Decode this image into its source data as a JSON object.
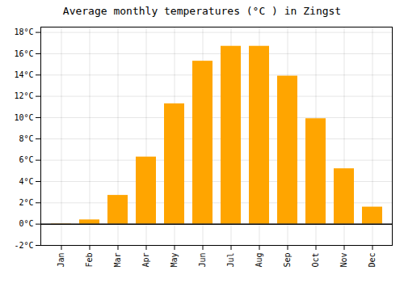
{
  "chart_data": {
    "type": "bar",
    "title": "Average monthly temperatures (°C ) in Zingst",
    "categories": [
      "Jan",
      "Feb",
      "Mar",
      "Apr",
      "May",
      "Jun",
      "Jul",
      "Aug",
      "Sep",
      "Oct",
      "Nov",
      "Dec"
    ],
    "values": [
      -0.1,
      0.4,
      2.7,
      6.3,
      11.3,
      15.3,
      16.7,
      16.7,
      13.9,
      9.9,
      5.2,
      1.6
    ],
    "color": "#FFA500",
    "ylim": [
      -2,
      18.5
    ],
    "yticks": [
      {
        "value": -2,
        "label": "-2°C"
      },
      {
        "value": 0,
        "label": "0°C"
      },
      {
        "value": 2,
        "label": "2°C"
      },
      {
        "value": 4,
        "label": "4°C"
      },
      {
        "value": 6,
        "label": "6°C"
      },
      {
        "value": 8,
        "label": "8°C"
      },
      {
        "value": 10,
        "label": "10°C"
      },
      {
        "value": 12,
        "label": "12°C"
      },
      {
        "value": 14,
        "label": "14°C"
      },
      {
        "value": 16,
        "label": "16°C"
      },
      {
        "value": 18,
        "label": "18°C"
      }
    ],
    "grid": true
  }
}
